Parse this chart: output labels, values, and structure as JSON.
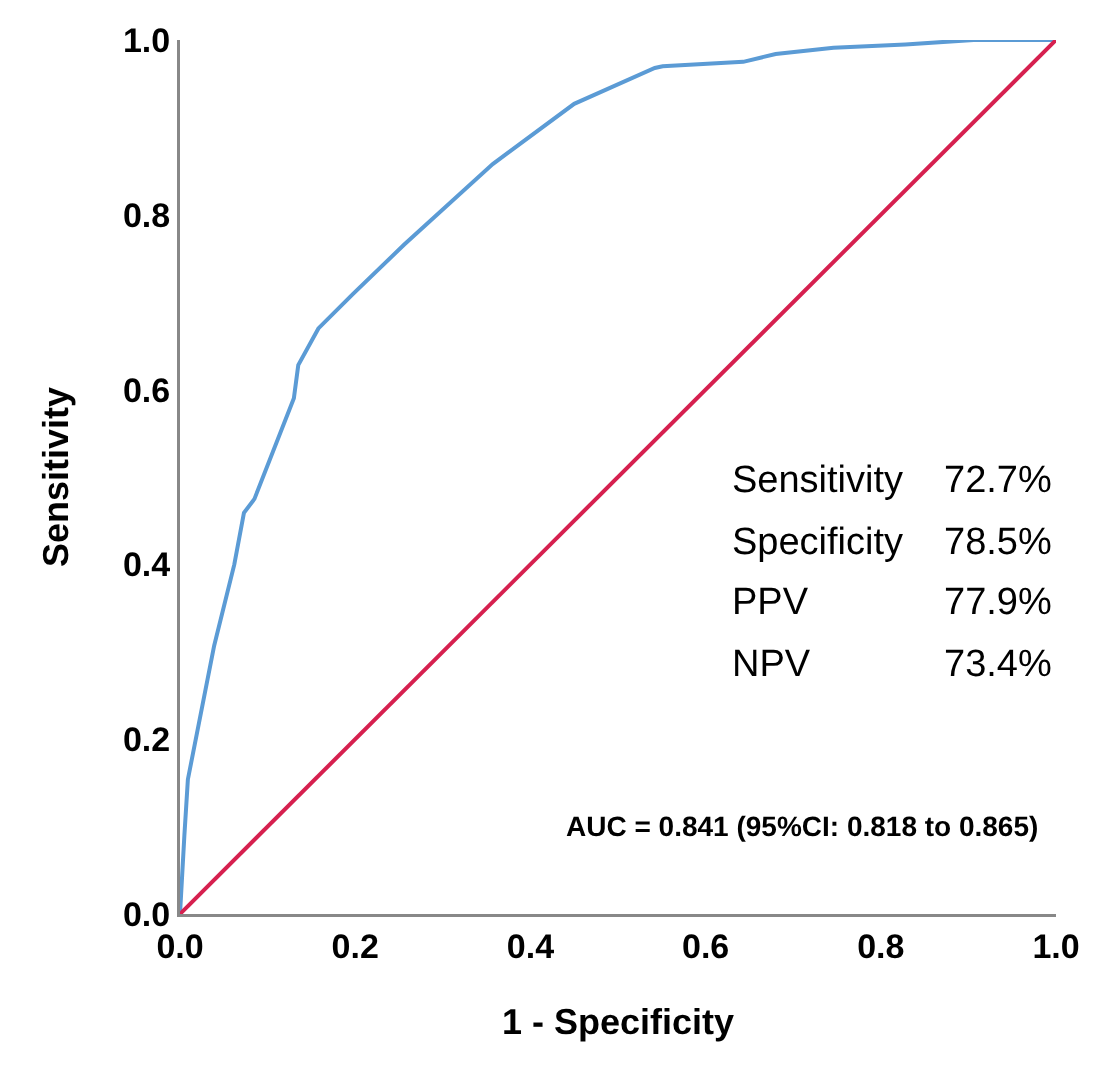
{
  "chart_data": {
    "type": "line",
    "xlabel": "1 - Specificity",
    "ylabel": "Sensitivity",
    "xlim": [
      0,
      1
    ],
    "ylim": [
      0,
      1
    ],
    "xticks": [
      {
        "value": 0,
        "label": "0.0"
      },
      {
        "value": 0.2,
        "label": "0.2"
      },
      {
        "value": 0.4,
        "label": "0.4"
      },
      {
        "value": 0.6,
        "label": "0.6"
      },
      {
        "value": 0.8,
        "label": "0.8"
      },
      {
        "value": 1,
        "label": "1.0"
      }
    ],
    "yticks": [
      {
        "value": 0,
        "label": "0.0"
      },
      {
        "value": 0.2,
        "label": "0.2"
      },
      {
        "value": 0.4,
        "label": "0.4"
      },
      {
        "value": 0.6,
        "label": "0.6"
      },
      {
        "value": 0.8,
        "label": "0.8"
      },
      {
        "value": 1,
        "label": "1.0"
      }
    ],
    "marker": "none",
    "line_style": "solid",
    "series": [
      {
        "color": "#5b9bd5",
        "x": [
          0,
          0.005,
          0.009,
          0.039,
          0.062,
          0.073,
          0.085,
          0.13,
          0.135,
          0.158,
          0.197,
          0.256,
          0.357,
          0.45,
          0.542,
          0.551,
          0.643,
          0.68,
          0.746,
          0.828,
          0.906,
          1
        ],
        "values": [
          0,
          0.09,
          0.154,
          0.307,
          0.4,
          0.459,
          0.475,
          0.59,
          0.628,
          0.67,
          0.709,
          0.766,
          0.858,
          0.927,
          0.968,
          0.97,
          0.975,
          0.984,
          0.991,
          0.995,
          1,
          1
        ]
      },
      {
        "color": "#d6204f",
        "x": [
          0,
          1
        ],
        "values": [
          0,
          1
        ]
      }
    ],
    "annotations": [
      "Sensitivity",
      "72.7%",
      "Specificity",
      "78.5%",
      "PPV",
      "77.9%",
      "NPV",
      "73.4%",
      "AUC = 0.841 (95%CI: 0.818 to 0.865)"
    ]
  }
}
